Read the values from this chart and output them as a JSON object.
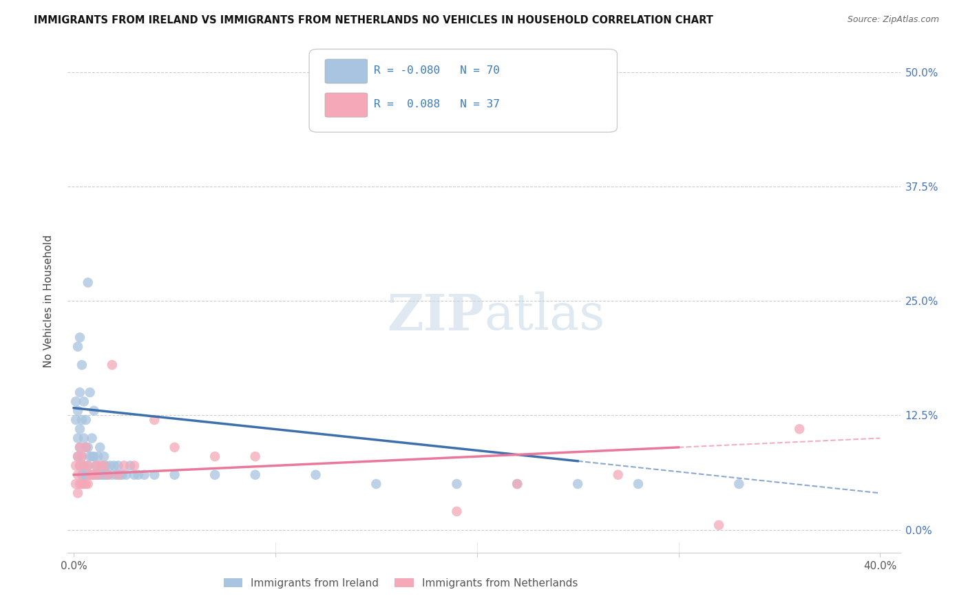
{
  "title": "IMMIGRANTS FROM IRELAND VS IMMIGRANTS FROM NETHERLANDS NO VEHICLES IN HOUSEHOLD CORRELATION CHART",
  "source": "Source: ZipAtlas.com",
  "ylabel": "No Vehicles in Household",
  "ireland_color": "#a8c4e0",
  "netherlands_color": "#f4a8b8",
  "ireland_line_color": "#3d6fad",
  "netherlands_line_color": "#e8799a",
  "ireland_R": -0.08,
  "ireland_N": 70,
  "netherlands_R": 0.088,
  "netherlands_N": 37,
  "watermark_zip": "ZIP",
  "watermark_atlas": "atlas",
  "xlim": [
    -0.003,
    0.41
  ],
  "ylim": [
    -0.025,
    0.525
  ],
  "ireland_x": [
    0.001,
    0.001,
    0.002,
    0.002,
    0.002,
    0.002,
    0.003,
    0.003,
    0.003,
    0.003,
    0.003,
    0.004,
    0.004,
    0.004,
    0.004,
    0.005,
    0.005,
    0.005,
    0.005,
    0.006,
    0.006,
    0.006,
    0.007,
    0.007,
    0.007,
    0.008,
    0.008,
    0.008,
    0.009,
    0.009,
    0.009,
    0.01,
    0.01,
    0.01,
    0.011,
    0.011,
    0.012,
    0.012,
    0.013,
    0.013,
    0.014,
    0.014,
    0.015,
    0.015,
    0.016,
    0.016,
    0.017,
    0.018,
    0.019,
    0.02,
    0.021,
    0.022,
    0.023,
    0.024,
    0.026,
    0.028,
    0.03,
    0.032,
    0.035,
    0.04,
    0.05,
    0.07,
    0.09,
    0.12,
    0.15,
    0.19,
    0.22,
    0.25,
    0.28,
    0.33
  ],
  "ireland_y": [
    0.12,
    0.14,
    0.08,
    0.1,
    0.13,
    0.2,
    0.07,
    0.09,
    0.11,
    0.15,
    0.21,
    0.06,
    0.08,
    0.12,
    0.18,
    0.06,
    0.07,
    0.1,
    0.14,
    0.06,
    0.09,
    0.12,
    0.07,
    0.09,
    0.27,
    0.06,
    0.08,
    0.15,
    0.06,
    0.08,
    0.1,
    0.06,
    0.08,
    0.13,
    0.06,
    0.07,
    0.06,
    0.08,
    0.06,
    0.09,
    0.06,
    0.07,
    0.06,
    0.08,
    0.06,
    0.07,
    0.06,
    0.07,
    0.06,
    0.07,
    0.06,
    0.07,
    0.06,
    0.06,
    0.06,
    0.07,
    0.06,
    0.06,
    0.06,
    0.06,
    0.06,
    0.06,
    0.06,
    0.06,
    0.05,
    0.05,
    0.05,
    0.05,
    0.05,
    0.05
  ],
  "netherlands_x": [
    0.001,
    0.001,
    0.002,
    0.002,
    0.002,
    0.003,
    0.003,
    0.003,
    0.004,
    0.004,
    0.005,
    0.005,
    0.006,
    0.006,
    0.007,
    0.007,
    0.008,
    0.009,
    0.01,
    0.011,
    0.012,
    0.013,
    0.015,
    0.017,
    0.019,
    0.022,
    0.025,
    0.03,
    0.04,
    0.05,
    0.07,
    0.09,
    0.19,
    0.22,
    0.27,
    0.32,
    0.36
  ],
  "netherlands_y": [
    0.05,
    0.07,
    0.04,
    0.06,
    0.08,
    0.05,
    0.07,
    0.09,
    0.05,
    0.08,
    0.05,
    0.07,
    0.05,
    0.09,
    0.05,
    0.07,
    0.06,
    0.06,
    0.06,
    0.07,
    0.06,
    0.07,
    0.07,
    0.06,
    0.18,
    0.06,
    0.07,
    0.07,
    0.12,
    0.09,
    0.08,
    0.08,
    0.02,
    0.05,
    0.06,
    0.005,
    0.11
  ],
  "ireland_line_x_start": 0.0,
  "ireland_line_x_solid_end": 0.25,
  "ireland_line_x_end": 0.4,
  "ireland_line_y_start": 0.133,
  "ireland_line_y_solid_end": 0.075,
  "ireland_line_y_end": 0.04,
  "netherlands_line_x_start": 0.0,
  "netherlands_line_x_solid_end": 0.3,
  "netherlands_line_x_end": 0.4,
  "netherlands_line_y_start": 0.06,
  "netherlands_line_y_solid_end": 0.09,
  "netherlands_line_y_end": 0.1
}
